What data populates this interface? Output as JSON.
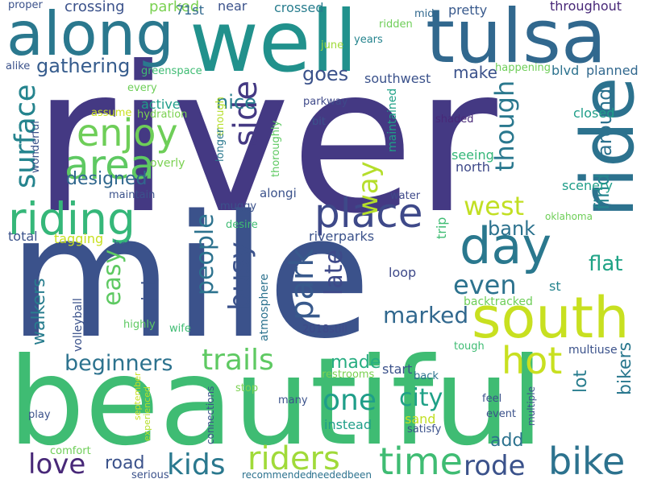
{
  "words": [
    {
      "text": "river",
      "color": "#443983"
    },
    {
      "text": "mile",
      "color": "#3b528b"
    },
    {
      "text": "beautiful",
      "color": "#3fbc73"
    },
    {
      "text": "well",
      "color": "#21918c"
    },
    {
      "text": "along",
      "color": "#2a788e"
    },
    {
      "text": "tulsa",
      "color": "#31688e"
    },
    {
      "text": "ride",
      "color": "#2c728e"
    },
    {
      "text": "south",
      "color": "#c8e020"
    },
    {
      "text": "day",
      "color": "#2a788e"
    },
    {
      "text": "riding",
      "color": "#35b779"
    },
    {
      "text": "place",
      "color": "#3e4989"
    },
    {
      "text": "area",
      "color": "#5ec962"
    },
    {
      "text": "enjoy",
      "color": "#6ece58"
    },
    {
      "text": "side",
      "color": "#443983"
    },
    {
      "text": "surface",
      "color": "#25848e"
    },
    {
      "text": "busy",
      "color": "#3b528b"
    },
    {
      "text": "people",
      "color": "#2c728e"
    },
    {
      "text": "park",
      "color": "#38598c"
    },
    {
      "text": "trails",
      "color": "#5ec962"
    },
    {
      "text": "hot",
      "color": "#c8e020"
    },
    {
      "text": "time",
      "color": "#3fbc73"
    },
    {
      "text": "bike",
      "color": "#2c728e"
    },
    {
      "text": "riders",
      "color": "#a0da39"
    },
    {
      "text": "kids",
      "color": "#2a788e"
    },
    {
      "text": "love",
      "color": "#482878"
    },
    {
      "text": "rode",
      "color": "#3b528b"
    },
    {
      "text": "one",
      "color": "#1f9e89"
    },
    {
      "text": "city",
      "color": "#1fa187"
    },
    {
      "text": "way",
      "color": "#b5de2b"
    },
    {
      "text": "though",
      "color": "#2a788e"
    },
    {
      "text": "west",
      "color": "#c2df23"
    },
    {
      "text": "even",
      "color": "#2c728e"
    },
    {
      "text": "late",
      "color": "#3e4989"
    },
    {
      "text": "easy",
      "color": "#5ec962"
    },
    {
      "text": "beginners",
      "color": "#2c728e"
    },
    {
      "text": "marked",
      "color": "#31688e"
    },
    {
      "text": "gathering",
      "color": "#365c8d"
    },
    {
      "text": "nice",
      "color": "#287d8e"
    },
    {
      "text": "goes",
      "color": "#3b528b"
    },
    {
      "text": "flat",
      "color": "#20a386"
    },
    {
      "text": "find",
      "color": "#25848e"
    },
    {
      "text": "around",
      "color": "#2c728e"
    },
    {
      "text": "bank",
      "color": "#2c728e"
    },
    {
      "text": "designed",
      "color": "#31688e"
    },
    {
      "text": "walkers",
      "color": "#287d8e"
    },
    {
      "text": "road",
      "color": "#3b528b"
    },
    {
      "text": "made",
      "color": "#26ad81"
    },
    {
      "text": "add",
      "color": "#2c728e"
    },
    {
      "text": "lot",
      "color": "#287d8e"
    },
    {
      "text": "bikers",
      "color": "#2a788e"
    },
    {
      "text": "job",
      "color": "#3b528b"
    },
    {
      "text": "make",
      "color": "#3b528b"
    },
    {
      "text": "surface2",
      "color": "#25848e"
    },
    {
      "text": "crossing",
      "color": "#3b528b"
    },
    {
      "text": "parked",
      "color": "#7ad151"
    },
    {
      "text": "71st",
      "color": "#31688e"
    },
    {
      "text": "near",
      "color": "#3b528b"
    },
    {
      "text": "crossed",
      "color": "#287d8e"
    },
    {
      "text": "pretty",
      "color": "#38598c"
    },
    {
      "text": "throughout",
      "color": "#482878"
    },
    {
      "text": "ridden",
      "color": "#6ece58"
    },
    {
      "text": "mid",
      "color": "#31688e"
    },
    {
      "text": "june",
      "color": "#a0da39"
    },
    {
      "text": "years",
      "color": "#25848e"
    },
    {
      "text": "proper",
      "color": "#3b528b"
    },
    {
      "text": "alike",
      "color": "#3b528b"
    },
    {
      "text": "greenspace",
      "color": "#3fbc73"
    },
    {
      "text": "every",
      "color": "#6ece58"
    },
    {
      "text": "southwest",
      "color": "#3b528b"
    },
    {
      "text": "happening",
      "color": "#6ece58"
    },
    {
      "text": "blvd",
      "color": "#2c728e"
    },
    {
      "text": "planned",
      "color": "#31688e"
    },
    {
      "text": "parkway",
      "color": "#3e4989"
    },
    {
      "text": "closed",
      "color": "#1f9e89"
    },
    {
      "text": "maintained",
      "color": "#1fa187"
    },
    {
      "text": "shaded",
      "color": "#482878"
    },
    {
      "text": "assume",
      "color": "#c8e020"
    },
    {
      "text": "hydration",
      "color": "#7ad151"
    },
    {
      "text": "active",
      "color": "#1f9e89"
    },
    {
      "text": "enough",
      "color": "#b5de2b"
    },
    {
      "text": "longer",
      "color": "#2a788e"
    },
    {
      "text": "thoroughly",
      "color": "#5ec962"
    },
    {
      "text": "bit",
      "color": "#3b528b"
    },
    {
      "text": "wonderful",
      "color": "#3b528b"
    },
    {
      "text": "overly",
      "color": "#7ad151"
    },
    {
      "text": "seeing",
      "color": "#35b779"
    },
    {
      "text": "north",
      "color": "#3e4989"
    },
    {
      "text": "scenery",
      "color": "#1f9e89"
    },
    {
      "text": "maintain",
      "color": "#3b528b"
    },
    {
      "text": "alongi",
      "color": "#3b528b"
    },
    {
      "text": "water",
      "color": "#3e4989"
    },
    {
      "text": "oklahoma",
      "color": "#6ece58"
    },
    {
      "text": "muggy",
      "color": "#3b528b"
    },
    {
      "text": "desire",
      "color": "#3fbc73"
    },
    {
      "text": "total",
      "color": "#3b528b"
    },
    {
      "text": "tagging",
      "color": "#c8e020"
    },
    {
      "text": "help",
      "color": "#3b528b"
    },
    {
      "text": "riverparks",
      "color": "#3b528b"
    },
    {
      "text": "trip",
      "color": "#3fbc73"
    },
    {
      "text": "loop",
      "color": "#3e4989"
    },
    {
      "text": "st",
      "color": "#25848e"
    },
    {
      "text": "volleyball",
      "color": "#3b528b"
    },
    {
      "text": "highly",
      "color": "#5ec962"
    },
    {
      "text": "atmosphere",
      "color": "#2c728e"
    },
    {
      "text": "backtracked",
      "color": "#6ece58"
    },
    {
      "text": "wife",
      "color": "#3fbc73"
    },
    {
      "text": "2018still",
      "color": "#3e4989"
    },
    {
      "text": "tough",
      "color": "#3fbc73"
    },
    {
      "text": "multiuse",
      "color": "#3b528b"
    },
    {
      "text": "restrooms",
      "color": "#7ad151"
    },
    {
      "text": "start",
      "color": "#3b528b"
    },
    {
      "text": "back",
      "color": "#2c728e"
    },
    {
      "text": "september",
      "color": "#c8e020"
    },
    {
      "text": "experienced",
      "color": "#b5de2b"
    },
    {
      "text": "connections",
      "color": "#3b528b"
    },
    {
      "text": "stop",
      "color": "#7ad151"
    },
    {
      "text": "feel",
      "color": "#3b528b"
    },
    {
      "text": "many",
      "color": "#3b528b"
    },
    {
      "text": "sand",
      "color": "#c2df23"
    },
    {
      "text": "event",
      "color": "#3b528b"
    },
    {
      "text": "play",
      "color": "#3b528b"
    },
    {
      "text": "instead",
      "color": "#1f9e89"
    },
    {
      "text": "satisfy",
      "color": "#3b528b"
    },
    {
      "text": "multiple",
      "color": "#3b528b"
    },
    {
      "text": "comfort",
      "color": "#6ece58"
    },
    {
      "text": "serious",
      "color": "#3b528b"
    },
    {
      "text": "recommended",
      "color": "#2c728e"
    },
    {
      "text": "neededbeen",
      "color": "#2c728e"
    }
  ]
}
